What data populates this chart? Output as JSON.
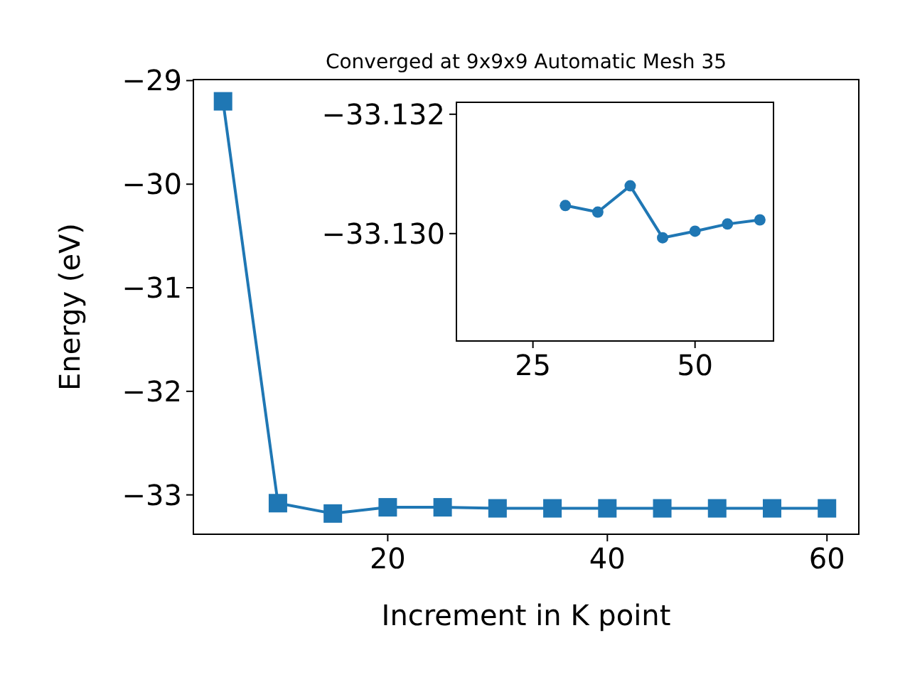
{
  "chart_data": [
    {
      "type": "line",
      "title": "Converged at 9x9x9 Automatic Mesh 35",
      "xlabel": "Increment in K point",
      "ylabel": "Energy (eV)",
      "marker": "square",
      "grid": false,
      "xlim": [
        2.3,
        62.9
      ],
      "ylim": [
        -33.38,
        -28.99
      ],
      "xticks": [
        20,
        40,
        60
      ],
      "yticks": [
        -33,
        -32,
        -31,
        -30,
        -29
      ],
      "x": [
        5,
        10,
        15,
        20,
        25,
        30,
        35,
        40,
        45,
        50,
        55,
        60
      ],
      "series": [
        {
          "color": "#1f77b4",
          "values": [
            -29.2,
            -33.08,
            -33.18,
            -33.12,
            -33.12,
            -33.13,
            -33.13,
            -33.13,
            -33.13,
            -33.13,
            -33.13,
            -33.13
          ]
        }
      ]
    },
    {
      "type": "line",
      "marker": "circle",
      "grid": false,
      "xlim": [
        13.2,
        62.1
      ],
      "ylim": [
        -33.1282,
        -33.1322
      ],
      "xticks": [
        25,
        50
      ],
      "yticks": [
        {
          "value": -33.132,
          "label": "−33.132"
        },
        {
          "value": -33.13,
          "label": "−33.130"
        }
      ],
      "x": [
        30,
        35,
        40,
        45,
        50,
        55,
        60
      ],
      "series": [
        {
          "color": "#1f77b4",
          "values": [
            -33.13047,
            -33.13036,
            -33.1308,
            -33.12993,
            -33.13004,
            -33.13016,
            -33.13023
          ]
        }
      ]
    }
  ]
}
